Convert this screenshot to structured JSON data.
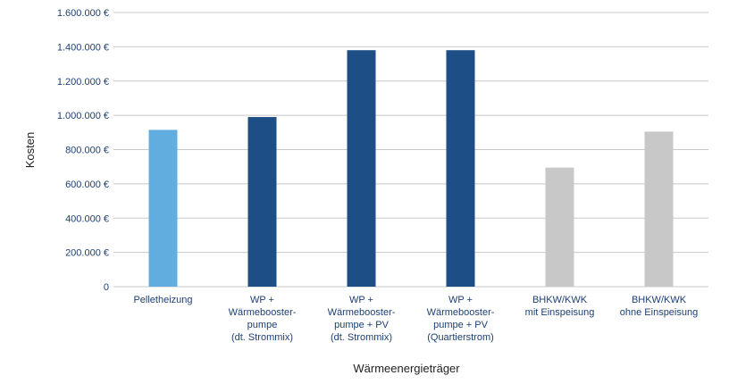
{
  "chart_data": {
    "type": "bar",
    "title": "",
    "xlabel": "Wärmeenergieträger",
    "ylabel": "Kosten",
    "ylim": [
      0,
      1600000
    ],
    "grid": true,
    "legend": "none",
    "yticks": [
      {
        "value": 0,
        "label": "0"
      },
      {
        "value": 200000,
        "label": "200.000 €"
      },
      {
        "value": 400000,
        "label": "400.000 €"
      },
      {
        "value": 600000,
        "label": "600.000 €"
      },
      {
        "value": 800000,
        "label": "800.000 €"
      },
      {
        "value": 1000000,
        "label": "1.000.000 €"
      },
      {
        "value": 1200000,
        "label": "1.200.000 €"
      },
      {
        "value": 1400000,
        "label": "1.400.000 €"
      },
      {
        "value": 1600000,
        "label": "1.600.000 €"
      }
    ],
    "categories": [
      [
        "Pelletheizung"
      ],
      [
        "WP +",
        "Wärmebooster-",
        "pumpe",
        "(dt. Strommix)"
      ],
      [
        "WP +",
        "Wärmebooster-",
        "pumpe + PV",
        "(dt. Strommix)"
      ],
      [
        "WP +",
        "Wärmebooster-",
        "pumpe + PV",
        "(Quartierstrom)"
      ],
      [
        "BHKW/KWK",
        "mit Einspeisung"
      ],
      [
        "BHKW/KWK",
        "ohne Einspeisung"
      ]
    ],
    "values": [
      915000,
      990000,
      1380000,
      1380000,
      695000,
      905000
    ],
    "colors": [
      "#62ade0",
      "#1d4e86",
      "#1d4e86",
      "#1d4e86",
      "#c8c8c8",
      "#c8c8c8"
    ]
  }
}
